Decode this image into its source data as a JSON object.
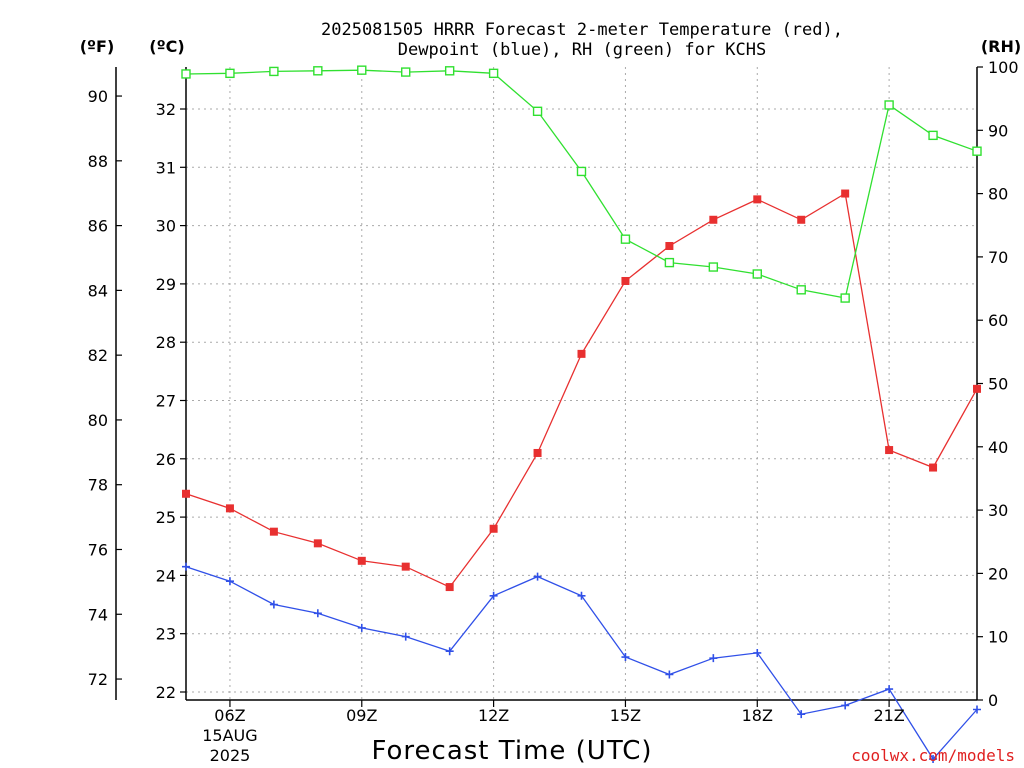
{
  "chart_data": {
    "type": "line",
    "title_line1": "2025081505 HRRR Forecast 2-meter Temperature (red),",
    "title_line2": "Dewpoint (blue), RH (green) for KCHS",
    "xlabel": "Forecast Time (UTC)",
    "credit": "coolwx.com/models",
    "unit_labels": {
      "fahrenheit": "(ºF)",
      "celsius": "(ºC)",
      "rh": "(RH)"
    },
    "x_hours": [
      5,
      6,
      7,
      8,
      9,
      10,
      11,
      12,
      13,
      14,
      15,
      16,
      17,
      18,
      19,
      20,
      21,
      22,
      23
    ],
    "x_ticks": [
      {
        "hour": 6,
        "label": "06Z",
        "sub1": "15AUG",
        "sub2": "2025"
      },
      {
        "hour": 9,
        "label": "09Z"
      },
      {
        "hour": 12,
        "label": "12Z"
      },
      {
        "hour": 15,
        "label": "15Z"
      },
      {
        "hour": 18,
        "label": "18Z"
      },
      {
        "hour": 21,
        "label": "21Z"
      }
    ],
    "xlim": [
      5,
      23
    ],
    "celsius_ticks": [
      22,
      23,
      24,
      25,
      26,
      27,
      28,
      29,
      30,
      31,
      32
    ],
    "celsius_lim": [
      22,
      32.7
    ],
    "fahrenheit_ticks": [
      72,
      74,
      76,
      78,
      80,
      82,
      84,
      86,
      88,
      90
    ],
    "rh_ticks": [
      0,
      10,
      20,
      30,
      40,
      50,
      60,
      70,
      80,
      90,
      100
    ],
    "rh_lim": [
      0,
      100
    ],
    "grid": true,
    "series": [
      {
        "name": "Temperature",
        "axis": "celsius",
        "color": "#e83030",
        "marker": "filled-square",
        "values": [
          25.4,
          25.15,
          24.75,
          24.55,
          24.25,
          24.15,
          23.8,
          24.8,
          26.1,
          27.8,
          29.05,
          29.65,
          30.1,
          30.45,
          30.1,
          30.55,
          26.15,
          25.85,
          27.2
        ]
      },
      {
        "name": "Dewpoint",
        "axis": "celsius",
        "color": "#3050e8",
        "marker": "plus",
        "values": [
          24.15,
          23.9,
          23.5,
          23.35,
          23.1,
          22.95,
          22.7,
          23.65,
          23.98,
          23.65,
          22.6,
          22.3,
          22.58,
          22.67,
          21.62,
          21.77,
          22.05,
          20.85,
          21.7
        ]
      },
      {
        "name": "RH",
        "axis": "rh",
        "color": "#30e030",
        "marker": "open-square",
        "values": [
          98.9,
          99.0,
          99.3,
          99.4,
          99.5,
          99.2,
          99.4,
          99.0,
          93.0,
          83.5,
          72.8,
          69.1,
          68.4,
          67.3,
          64.8,
          63.5,
          94.0,
          89.2,
          86.7
        ]
      }
    ]
  }
}
